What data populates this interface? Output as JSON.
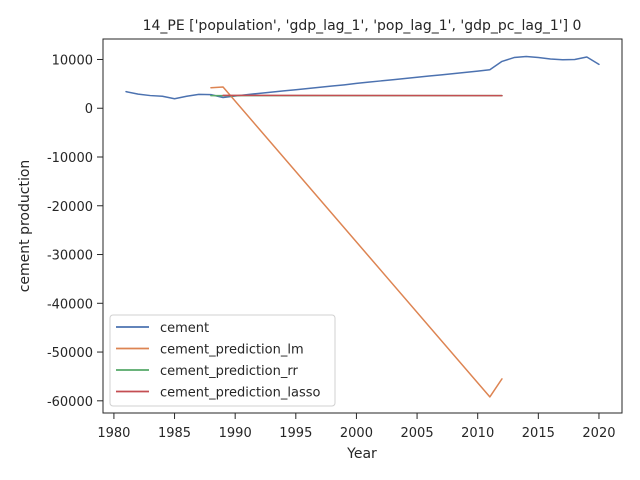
{
  "chart_data": {
    "type": "line",
    "title": "14_PE ['population', 'gdp_lag_1', 'pop_lag_1', 'gdp_pc_lag_1'] 0",
    "xlabel": "Year",
    "ylabel": "cement production",
    "xlim": [
      1979.1,
      2021.9
    ],
    "ylim": [
      -62500,
      14200
    ],
    "xticks": [
      1980,
      1985,
      1990,
      1995,
      2000,
      2005,
      2010,
      2015,
      2020
    ],
    "yticks": [
      10000,
      0,
      -10000,
      -20000,
      -30000,
      -40000,
      -50000,
      -60000
    ],
    "grid": false,
    "legend_position": "lower-left",
    "series": [
      {
        "name": "cement",
        "color": "#4c72b0",
        "points": [
          [
            1981,
            3400
          ],
          [
            1982,
            2900
          ],
          [
            1983,
            2600
          ],
          [
            1984,
            2450
          ],
          [
            1985,
            1950
          ],
          [
            1986,
            2450
          ],
          [
            1987,
            2850
          ],
          [
            1988,
            2800
          ],
          [
            1989,
            2200
          ],
          [
            1990,
            2500
          ],
          [
            1991,
            2800
          ],
          [
            1992,
            3050
          ],
          [
            1993,
            3300
          ],
          [
            1994,
            3550
          ],
          [
            1995,
            3800
          ],
          [
            1996,
            4050
          ],
          [
            1997,
            4300
          ],
          [
            1998,
            4550
          ],
          [
            1999,
            4800
          ],
          [
            2000,
            5100
          ],
          [
            2001,
            5350
          ],
          [
            2002,
            5600
          ],
          [
            2003,
            5850
          ],
          [
            2004,
            6100
          ],
          [
            2005,
            6350
          ],
          [
            2006,
            6600
          ],
          [
            2007,
            6850
          ],
          [
            2008,
            7100
          ],
          [
            2009,
            7350
          ],
          [
            2010,
            7600
          ],
          [
            2011,
            7900
          ],
          [
            2012,
            9600
          ],
          [
            2013,
            10400
          ],
          [
            2014,
            10600
          ],
          [
            2015,
            10400
          ],
          [
            2016,
            10100
          ],
          [
            2017,
            9950
          ],
          [
            2018,
            10000
          ],
          [
            2019,
            10500
          ],
          [
            2020,
            9000
          ]
        ]
      },
      {
        "name": "cement_prediction_lm",
        "color": "#dd8452",
        "points": [
          [
            1988,
            4200
          ],
          [
            1989,
            4350
          ],
          [
            2011,
            -59200
          ],
          [
            2012,
            -55500
          ]
        ]
      },
      {
        "name": "cement_prediction_rr",
        "color": "#55a868",
        "points": [
          [
            1988,
            2600
          ],
          [
            2012,
            2600
          ]
        ]
      },
      {
        "name": "cement_prediction_lasso",
        "color": "#c44e52",
        "points": [
          [
            1989,
            2650
          ],
          [
            2012,
            2600
          ]
        ]
      }
    ]
  }
}
